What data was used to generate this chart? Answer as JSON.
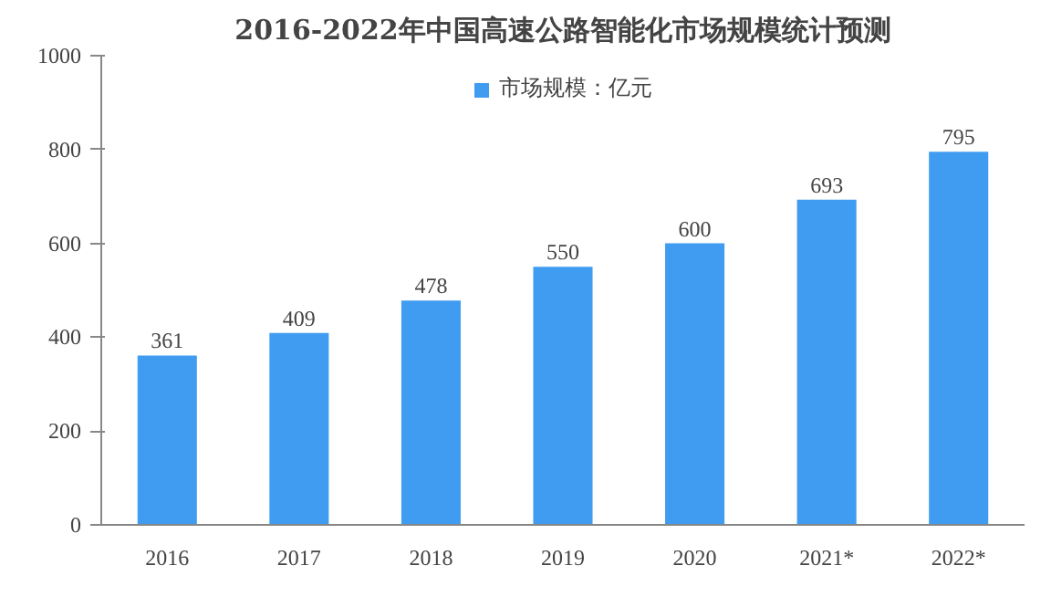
{
  "chart_data": {
    "type": "bar",
    "title": "2016-2022年中国高速公路智能化市场规模统计预测",
    "categories": [
      "2016",
      "2017",
      "2018",
      "2019",
      "2020",
      "2021*",
      "2022*"
    ],
    "series": [
      {
        "name": "市场规模：亿元",
        "color": "#3f9cf0",
        "values": [
          361,
          409,
          478,
          550,
          600,
          693,
          795
        ]
      }
    ],
    "ylim": [
      0,
      1000
    ],
    "yticks": [
      0,
      200,
      400,
      600,
      800,
      1000
    ],
    "grid": false,
    "legend": "top",
    "data_labels": true
  }
}
